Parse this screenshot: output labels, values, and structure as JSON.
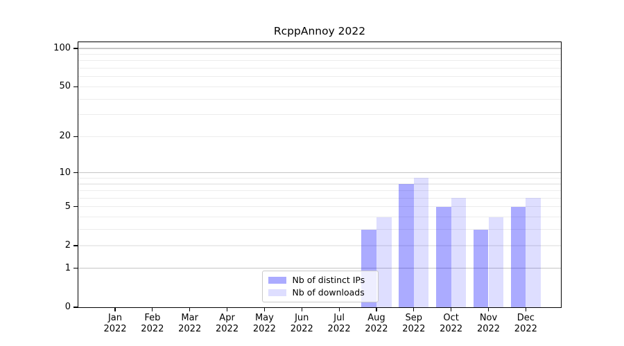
{
  "chart_data": {
    "type": "bar",
    "title": "RcppAnnoy 2022",
    "categories": [
      "Jan",
      "Feb",
      "Mar",
      "Apr",
      "May",
      "Jun",
      "Jul",
      "Aug",
      "Sep",
      "Oct",
      "Nov",
      "Dec"
    ],
    "x_year_label": "2022",
    "series": [
      {
        "name": "Nb of distinct IPs",
        "color": "rgba(0,0,255,0.33)",
        "values": [
          0,
          0,
          0,
          0,
          0,
          0,
          0,
          3,
          8,
          5,
          3,
          5
        ]
      },
      {
        "name": "Nb of downloads",
        "color": "rgba(0,0,255,0.13)",
        "values": [
          0,
          0,
          0,
          0,
          0,
          0,
          0,
          4,
          9,
          6,
          4,
          6
        ]
      }
    ],
    "yscale": "log1p",
    "ylim": [
      0,
      113
    ],
    "y_tick_labels": [
      0,
      1,
      2,
      5,
      10,
      20,
      50,
      100
    ],
    "y_major_gridlines": [
      1,
      10,
      100
    ],
    "y_minor_gridlines": [
      2,
      3,
      4,
      5,
      6,
      7,
      8,
      9,
      20,
      30,
      40,
      50,
      60,
      70,
      80,
      90
    ],
    "grid": "horizontal",
    "legend_position": "lower center",
    "colors": {
      "bar_distinct_ips": "rgba(0,0,255,0.33)",
      "bar_downloads": "rgba(0,0,255,0.13)",
      "major_grid": "#c5c5c5",
      "minor_grid": "#ececec",
      "axis": "#000000",
      "text": "#000000",
      "legend_border": "#c9c9c9"
    }
  }
}
